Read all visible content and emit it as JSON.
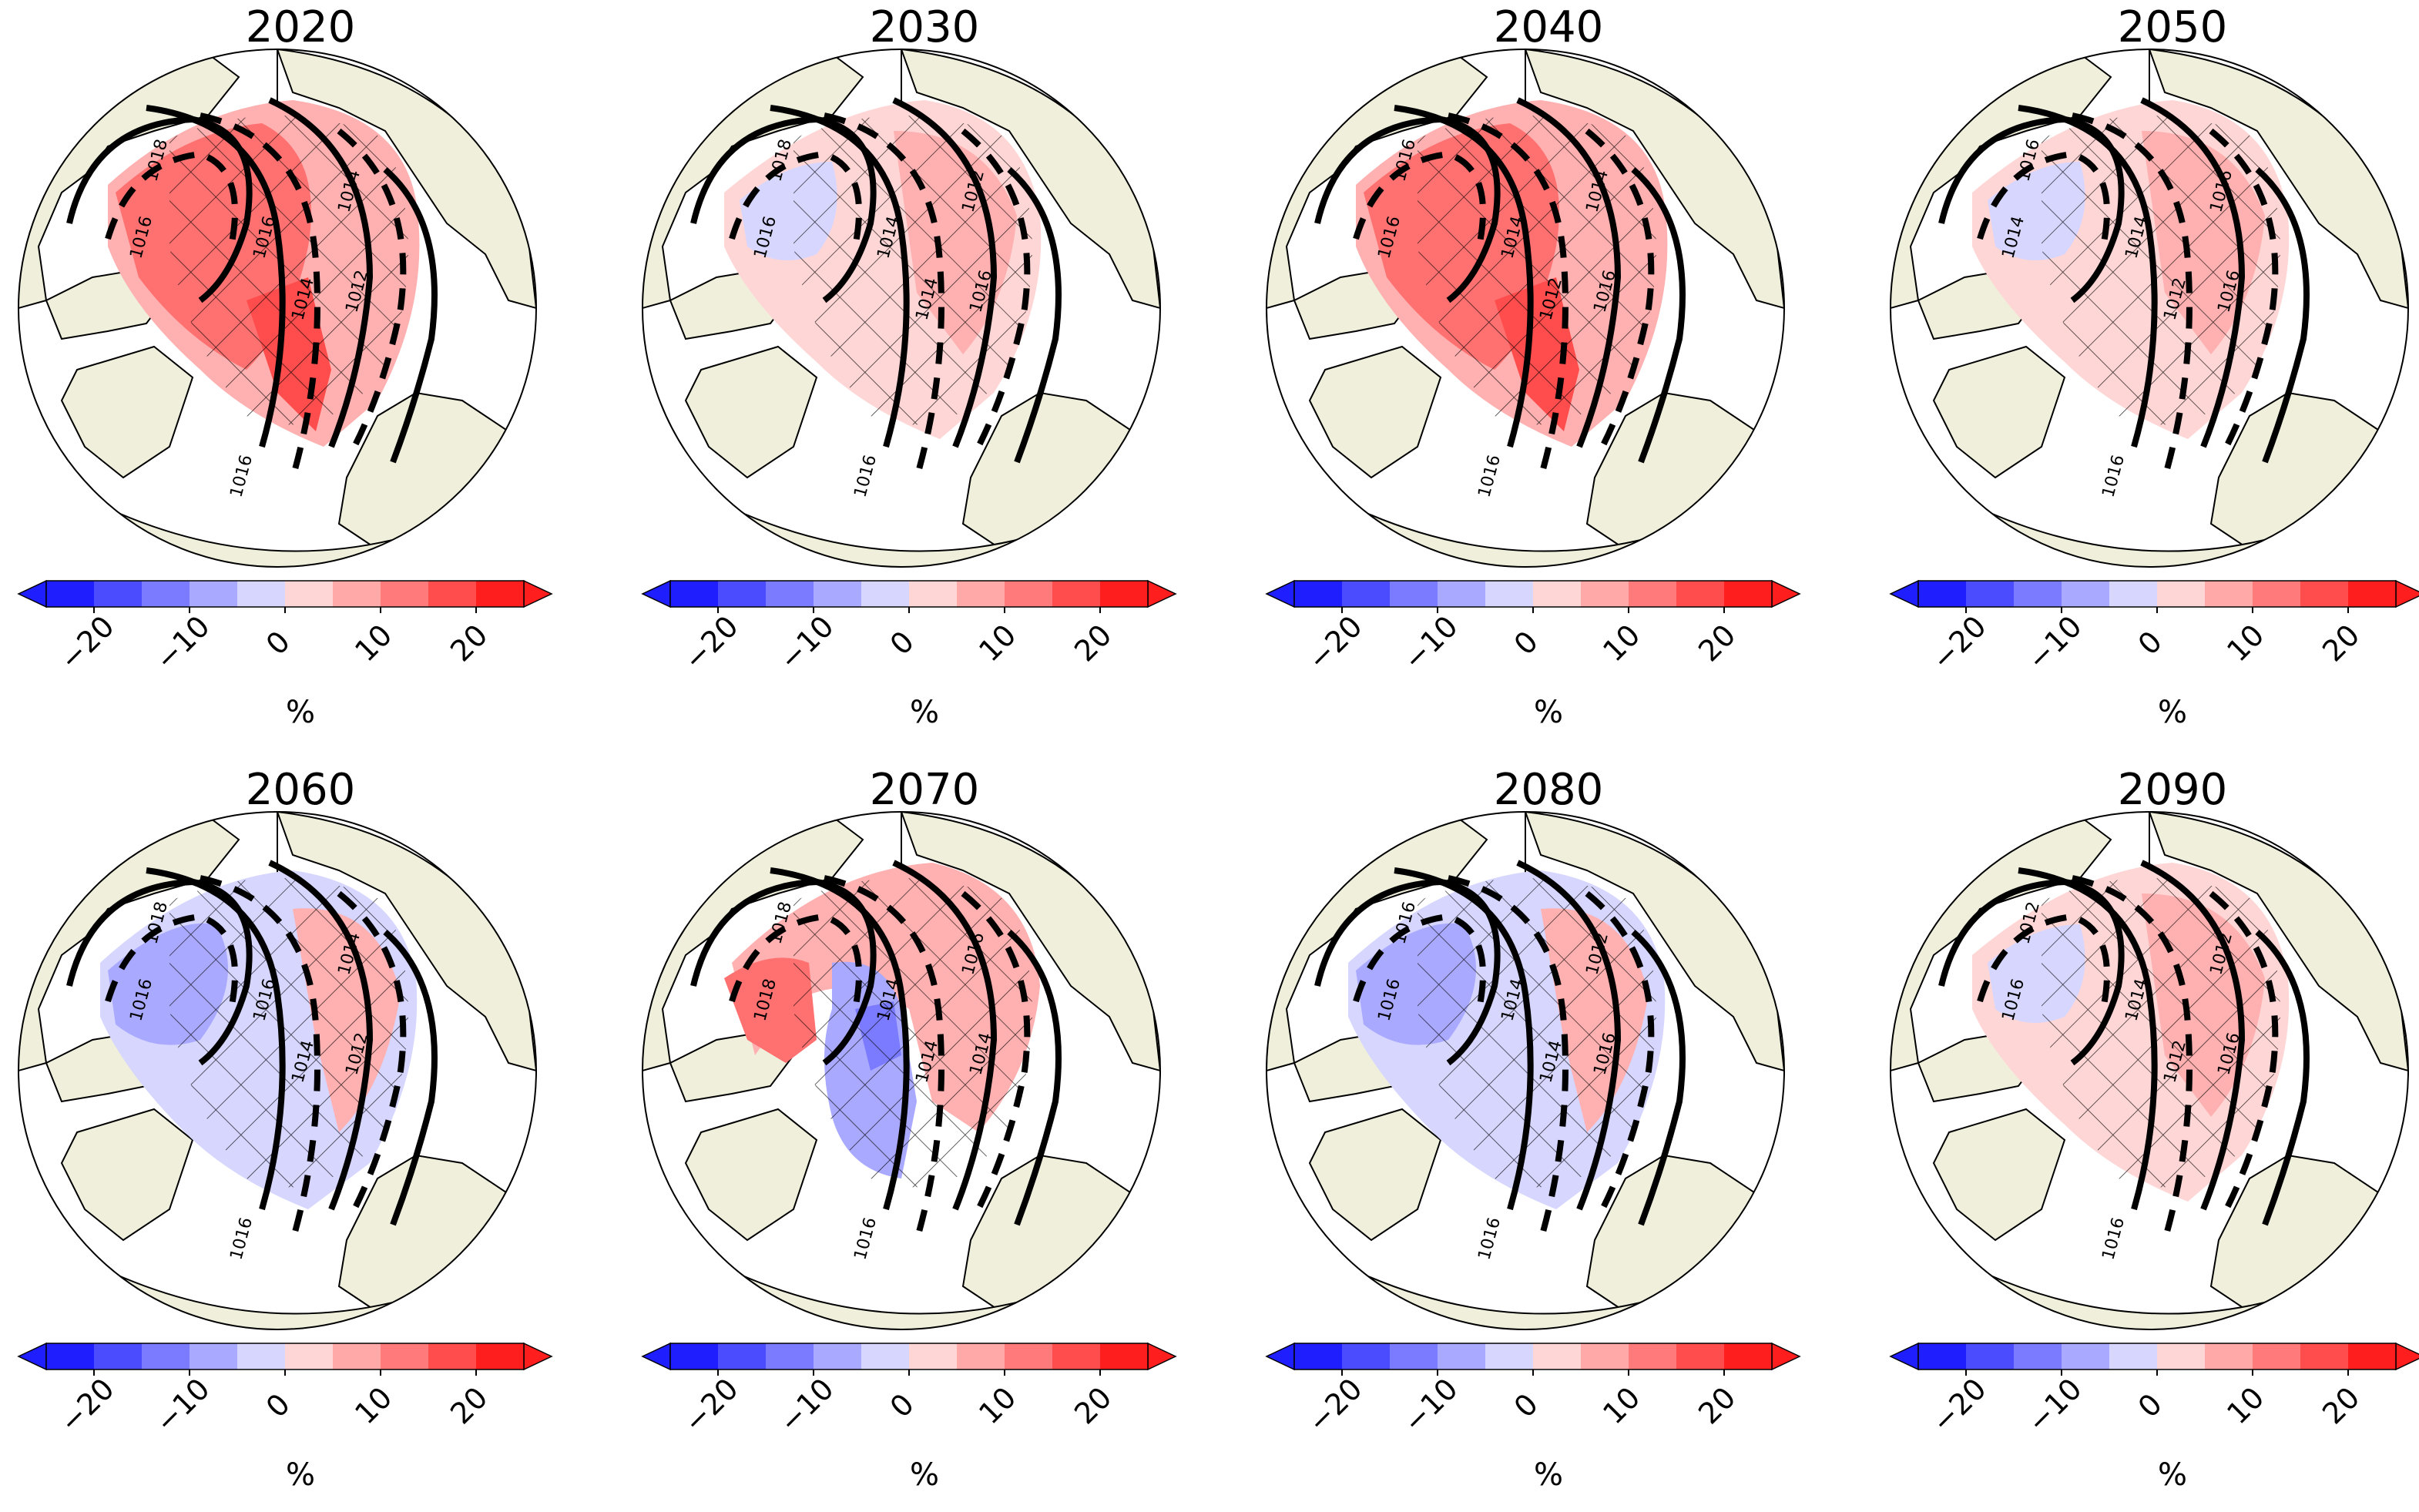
{
  "figure": {
    "panels": [
      {
        "year": "2020",
        "anomaly": "warm",
        "contours": [
          "1018",
          "1016",
          "1016",
          "1014",
          "1014",
          "1012",
          "1016"
        ]
      },
      {
        "year": "2030",
        "anomaly": "mixed",
        "contours": [
          "1018",
          "1016",
          "1014",
          "1014",
          "1012",
          "1016",
          "1016"
        ]
      },
      {
        "year": "2040",
        "anomaly": "warm",
        "contours": [
          "1016",
          "1016",
          "1014",
          "1012",
          "1014",
          "1016",
          "1016"
        ]
      },
      {
        "year": "2050",
        "anomaly": "mixed",
        "contours": [
          "1016",
          "1014",
          "1014",
          "1012",
          "1016",
          "1016",
          "1016"
        ]
      },
      {
        "year": "2060",
        "anomaly": "cool",
        "contours": [
          "1018",
          "1016",
          "1016",
          "1014",
          "1014",
          "1012",
          "1016"
        ]
      },
      {
        "year": "2070",
        "anomaly": "split",
        "contours": [
          "1018",
          "1018",
          "1014",
          "1014",
          "1016",
          "1014",
          "1016"
        ]
      },
      {
        "year": "2080",
        "anomaly": "cool",
        "contours": [
          "1016",
          "1016",
          "1014",
          "1014",
          "1012",
          "1016",
          "1016"
        ]
      },
      {
        "year": "2090",
        "anomaly": "mixed",
        "contours": [
          "1012",
          "1016",
          "1014",
          "1012",
          "1012",
          "1016",
          "1016"
        ]
      }
    ],
    "colorbar": {
      "ticks": [
        "−20",
        "−10",
        "0",
        "10",
        "20"
      ],
      "unit": "%",
      "levels": [
        -25,
        -20,
        -15,
        -10,
        -5,
        0,
        5,
        10,
        15,
        20,
        25
      ],
      "colors": [
        "#1e1eff",
        "#4c4cff",
        "#7b7bff",
        "#a9a9ff",
        "#d6d6ff",
        "#ffd6d6",
        "#ffa9a9",
        "#ff7b7b",
        "#ff4c4c",
        "#ff1e1e"
      ]
    },
    "colors": {
      "land": "#efefdb",
      "ocean": "#ffffff",
      "warm": "#ff6e6e",
      "cool": "#a9a9ff",
      "contour": "#000000"
    },
    "icons": [
      "polar-stereographic-map",
      "hatching",
      "isobar-contour",
      "colorbar-extend-arrow"
    ]
  }
}
